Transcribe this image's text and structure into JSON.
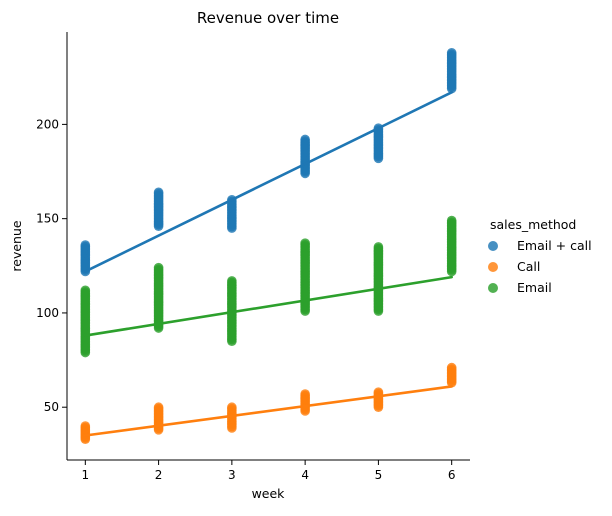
{
  "chart_data": {
    "type": "scatter",
    "title": "Revenue over time",
    "xlabel": "week",
    "ylabel": "revenue",
    "xlim": [
      0.75,
      6.25
    ],
    "ylim": [
      22,
      249
    ],
    "xticks": [
      1,
      2,
      3,
      4,
      5,
      6
    ],
    "yticks": [
      50,
      100,
      150,
      200
    ],
    "grid": false,
    "legend": {
      "title": "sales_method",
      "placement": "right"
    },
    "series": [
      {
        "name": "Email + call",
        "color": "#1f77b4",
        "point_ranges": [
          {
            "x": 1,
            "min": 122,
            "max": 136
          },
          {
            "x": 2,
            "min": 146,
            "max": 164
          },
          {
            "x": 3,
            "min": 145,
            "max": 160
          },
          {
            "x": 4,
            "min": 174,
            "max": 192
          },
          {
            "x": 5,
            "min": 182,
            "max": 198
          },
          {
            "x": 6,
            "min": 219,
            "max": 238
          }
        ],
        "fit": {
          "x": [
            1,
            6
          ],
          "y": [
            122,
            217
          ]
        }
      },
      {
        "name": "Call",
        "color": "#ff7f0e",
        "point_ranges": [
          {
            "x": 1,
            "min": 33,
            "max": 40
          },
          {
            "x": 2,
            "min": 38,
            "max": 50
          },
          {
            "x": 3,
            "min": 39,
            "max": 50
          },
          {
            "x": 4,
            "min": 48,
            "max": 57
          },
          {
            "x": 5,
            "min": 50,
            "max": 58
          },
          {
            "x": 6,
            "min": 63,
            "max": 71
          }
        ],
        "fit": {
          "x": [
            1,
            6
          ],
          "y": [
            35,
            61
          ]
        }
      },
      {
        "name": "Email",
        "color": "#2ca02c",
        "point_ranges": [
          {
            "x": 1,
            "min": 79,
            "max": 112
          },
          {
            "x": 2,
            "min": 92,
            "max": 124
          },
          {
            "x": 3,
            "min": 85,
            "max": 117
          },
          {
            "x": 4,
            "min": 101,
            "max": 137
          },
          {
            "x": 5,
            "min": 101,
            "max": 135
          },
          {
            "x": 6,
            "min": 122,
            "max": 149
          }
        ],
        "fit": {
          "x": [
            1,
            6
          ],
          "y": [
            88,
            119
          ]
        }
      }
    ]
  }
}
